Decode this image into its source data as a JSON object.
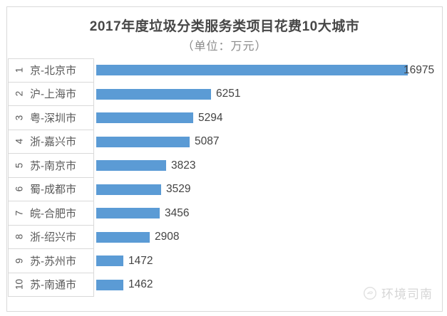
{
  "header": {
    "title": "2017年度垃圾分类服务类项目花费10大城市",
    "subtitle": "（单位：万元）"
  },
  "watermark": {
    "icon": "compass-icon",
    "text": "环境司南"
  },
  "colors": {
    "bar": "#5b9bd5",
    "title_text": "#474747",
    "subtitle_text": "#8a8a8a",
    "label_text": "#595959",
    "value_text": "#434343",
    "grid_border": "#d9d9d9",
    "watermark": "#d6d6d6"
  },
  "chart_data": {
    "type": "bar",
    "orientation": "horizontal",
    "title": "2017年度垃圾分类服务类项目花费10大城市",
    "subtitle": "（单位：万元）",
    "unit": "万元",
    "xlabel": "",
    "ylabel": "",
    "xlim": [
      0,
      17000
    ],
    "grid": false,
    "legend": false,
    "data_labels": true,
    "categories": [
      "京-北京市",
      "沪-上海市",
      "粤-深圳市",
      "浙-嘉兴市",
      "苏-南京市",
      "蜀-成都市",
      "皖-合肥市",
      "浙-绍兴市",
      "苏-苏州市",
      "苏-南通市"
    ],
    "values": [
      16975,
      6251,
      5294,
      5087,
      3823,
      3529,
      3456,
      2908,
      1472,
      1462
    ],
    "rows": [
      {
        "rank": "1",
        "city": "京-北京市",
        "value": 16975
      },
      {
        "rank": "2",
        "city": "沪-上海市",
        "value": 6251
      },
      {
        "rank": "3",
        "city": "粤-深圳市",
        "value": 5294
      },
      {
        "rank": "4",
        "city": "浙-嘉兴市",
        "value": 5087
      },
      {
        "rank": "5",
        "city": "苏-南京市",
        "value": 3823
      },
      {
        "rank": "6",
        "city": "蜀-成都市",
        "value": 3529
      },
      {
        "rank": "7",
        "city": "皖-合肥市",
        "value": 3456
      },
      {
        "rank": "8",
        "city": "浙-绍兴市",
        "value": 2908
      },
      {
        "rank": "9",
        "city": "苏-苏州市",
        "value": 1472
      },
      {
        "rank": "10",
        "city": "苏-南通市",
        "value": 1462
      }
    ]
  }
}
